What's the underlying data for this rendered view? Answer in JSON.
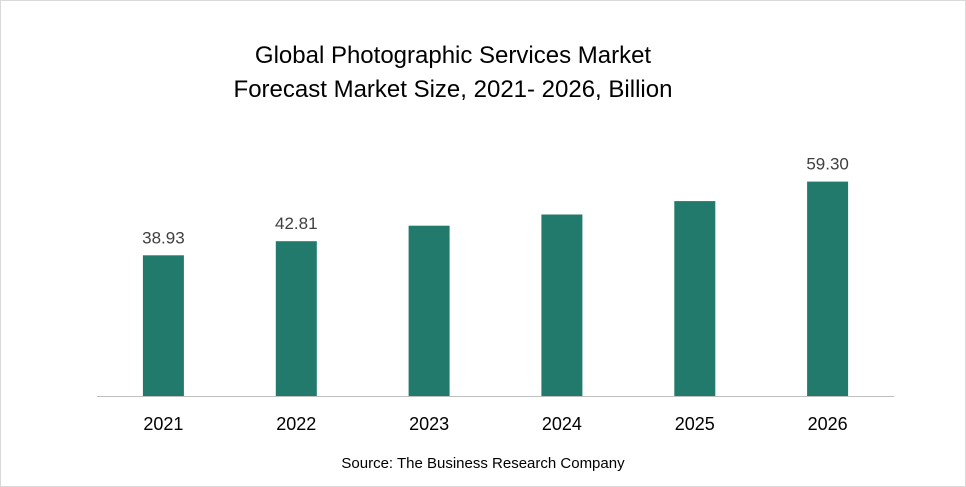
{
  "chart_data": {
    "type": "bar",
    "title": [
      "Global Photographic Services Market",
      "Forecast Market Size, 2021- 2026, Billion"
    ],
    "categories": [
      "2021",
      "2022",
      "2023",
      "2024",
      "2025",
      "2026"
    ],
    "values": [
      38.93,
      42.81,
      47.1,
      50.2,
      53.9,
      59.3
    ],
    "data_labels": [
      "38.93",
      "42.81",
      "",
      "",
      "",
      "59.30"
    ],
    "xlabel": "",
    "ylabel": "",
    "ylim": [
      0,
      65
    ],
    "grid": false,
    "legend": "none",
    "bar_color": "#217a6b",
    "axis_color": "#bfbfbf",
    "source": "Source: The Business Research Company"
  }
}
